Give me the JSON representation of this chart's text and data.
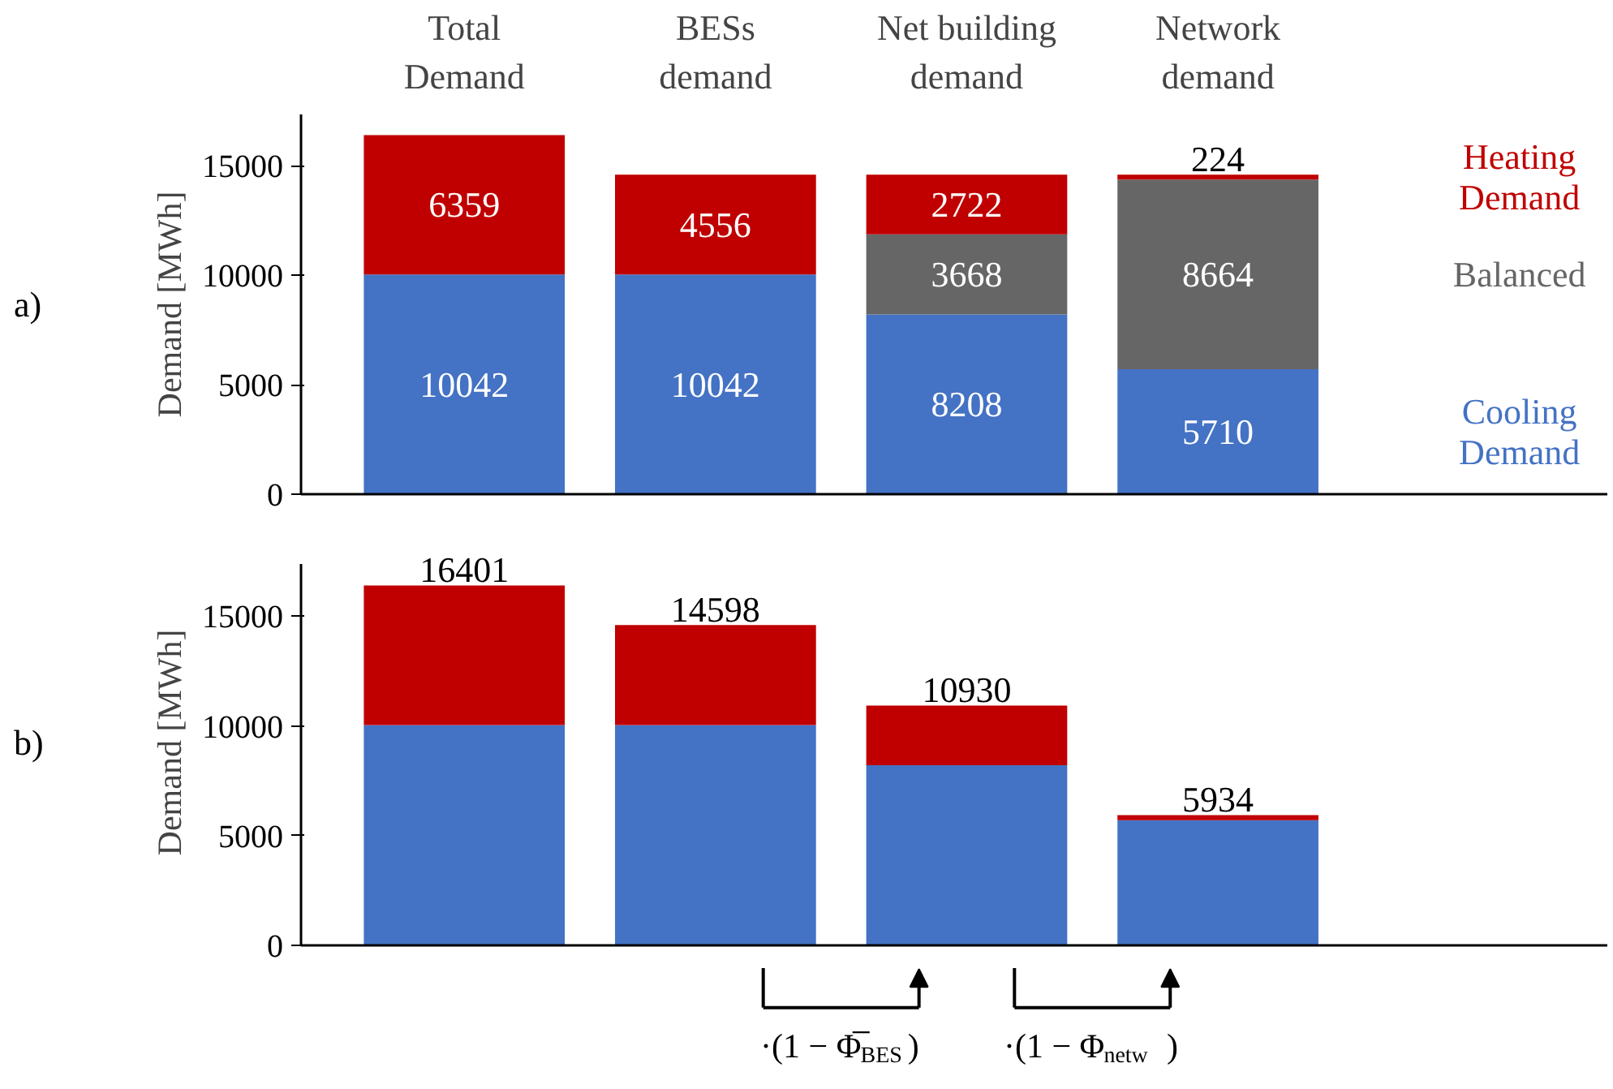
{
  "chart_data": [
    {
      "type": "bar",
      "title": "a)",
      "stacked": true,
      "ylabel": "Demand [MWh]",
      "categories": [
        "Total\nDemand",
        "BESs\ndemand",
        "Net building\ndemand",
        "Network\ndemand"
      ],
      "ylim": [
        0,
        17350
      ],
      "yticks": [
        0,
        5000,
        10000,
        15000
      ],
      "grid": false,
      "legend": false,
      "data_labels": true,
      "series": [
        {
          "name": "Cooling\nDemand",
          "color": "#4472c4",
          "values": [
            10042,
            10042,
            8208,
            5710
          ]
        },
        {
          "name": "Balanced",
          "color": "#666666",
          "values": [
            null,
            null,
            3668,
            8664
          ]
        },
        {
          "name": "Heating\nDemand",
          "color": "#c00000",
          "values": [
            6359,
            4556,
            2722,
            224
          ]
        }
      ]
    },
    {
      "type": "bar",
      "title": "b)",
      "stacked": true,
      "ylabel": "Demand [MWh]",
      "categories": [
        null,
        null,
        null,
        null
      ],
      "tick_labels": "y",
      "ylim": [
        0,
        17350
      ],
      "yticks": [
        0,
        5000,
        10000,
        15000
      ],
      "grid": false,
      "legend": false,
      "series": [
        {
          "color": "#4472c4",
          "values": [
            10042,
            10042,
            8208,
            5710
          ]
        },
        {
          "color": "#c00000",
          "values": [
            6359,
            4556,
            2722,
            224
          ]
        }
      ],
      "totals": [
        "16401",
        "14598",
        "10930",
        "5934"
      ],
      "annotations": [
        "·(1 − Φ̅$_{BES}$)",
        "·(1 − Φ$_{netw}$)"
      ]
    }
  ]
}
